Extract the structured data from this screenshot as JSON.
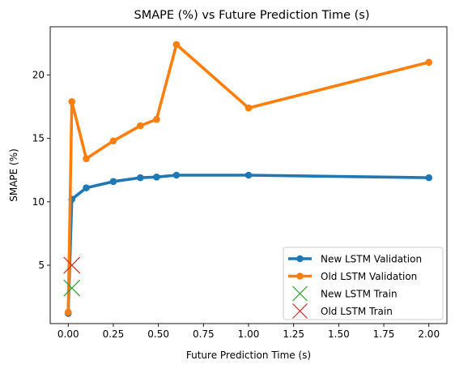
{
  "chart_data": {
    "type": "line",
    "title": "SMAPE (%) vs Future Prediction Time (s)",
    "xlabel": "Future Prediction Time (s)",
    "ylabel": "SMAPE (%)",
    "xlim": [
      -0.1,
      2.1
    ],
    "ylim": [
      0.4,
      23.8
    ],
    "xticks": [
      0.0,
      0.25,
      0.5,
      0.75,
      1.0,
      1.25,
      1.5,
      1.75,
      2.0
    ],
    "xtick_labels": [
      "0.00",
      "0.25",
      "0.50",
      "0.75",
      "1.00",
      "1.25",
      "1.50",
      "1.75",
      "2.00"
    ],
    "yticks": [
      5,
      10,
      15,
      20
    ],
    "ytick_labels": [
      "5",
      "10",
      "15",
      "20"
    ],
    "grid": false,
    "legend_position": "bottom-right",
    "series": [
      {
        "name": "New LSTM Validation",
        "kind": "line",
        "color": "#1f77b4",
        "marker": "circle",
        "x": [
          0.0,
          0.02,
          0.1,
          0.25,
          0.4,
          0.49,
          0.6,
          1.0,
          2.0
        ],
        "y": [
          1.2,
          10.2,
          11.1,
          11.6,
          11.9,
          11.95,
          12.1,
          12.1,
          11.9
        ]
      },
      {
        "name": "Old LSTM Validation",
        "kind": "line",
        "color": "#ff7f0e",
        "marker": "circle",
        "x": [
          0.0,
          0.02,
          0.1,
          0.25,
          0.4,
          0.49,
          0.6,
          1.0,
          2.0
        ],
        "y": [
          1.3,
          17.9,
          13.4,
          14.8,
          16.0,
          16.5,
          22.4,
          17.4,
          21.0
        ]
      },
      {
        "name": "New LSTM Train",
        "kind": "scatter",
        "color": "#2ca02c",
        "marker": "x",
        "x": [
          0.02
        ],
        "y": [
          3.2
        ]
      },
      {
        "name": "Old LSTM Train",
        "kind": "scatter",
        "color": "#d62728",
        "marker": "x",
        "x": [
          0.02
        ],
        "y": [
          5.0
        ]
      }
    ]
  }
}
